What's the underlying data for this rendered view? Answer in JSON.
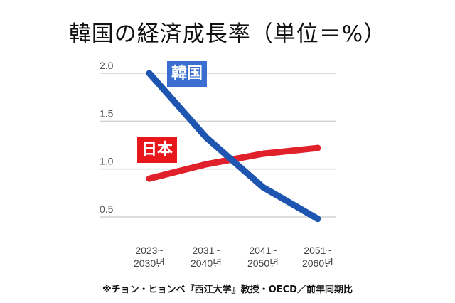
{
  "chart_data": {
    "type": "line",
    "title": "韓国の経済成長率（単位＝%）",
    "categories": [
      [
        "2023~",
        "2030년"
      ],
      [
        "2031~",
        "2040년"
      ],
      [
        "2041~",
        "2050년"
      ],
      [
        "2051~",
        "2060년"
      ]
    ],
    "yticks": [
      "2.0",
      "1.5",
      "1.0",
      "0.5"
    ],
    "ylim": [
      0.5,
      2.0
    ],
    "grid": true,
    "series": [
      {
        "name": "韓国",
        "color": "#1d55b0",
        "label_bg": "#3a6fd0",
        "values": [
          2.0,
          1.33,
          0.81,
          0.48
        ]
      },
      {
        "name": "日本",
        "color": "#e0202a",
        "label_bg": "#e8171c",
        "values": [
          0.9,
          1.05,
          1.16,
          1.22
        ]
      }
    ],
    "note": "※チョン・ヒョンベ『西江大学』教授・OECD／前年同期比"
  }
}
